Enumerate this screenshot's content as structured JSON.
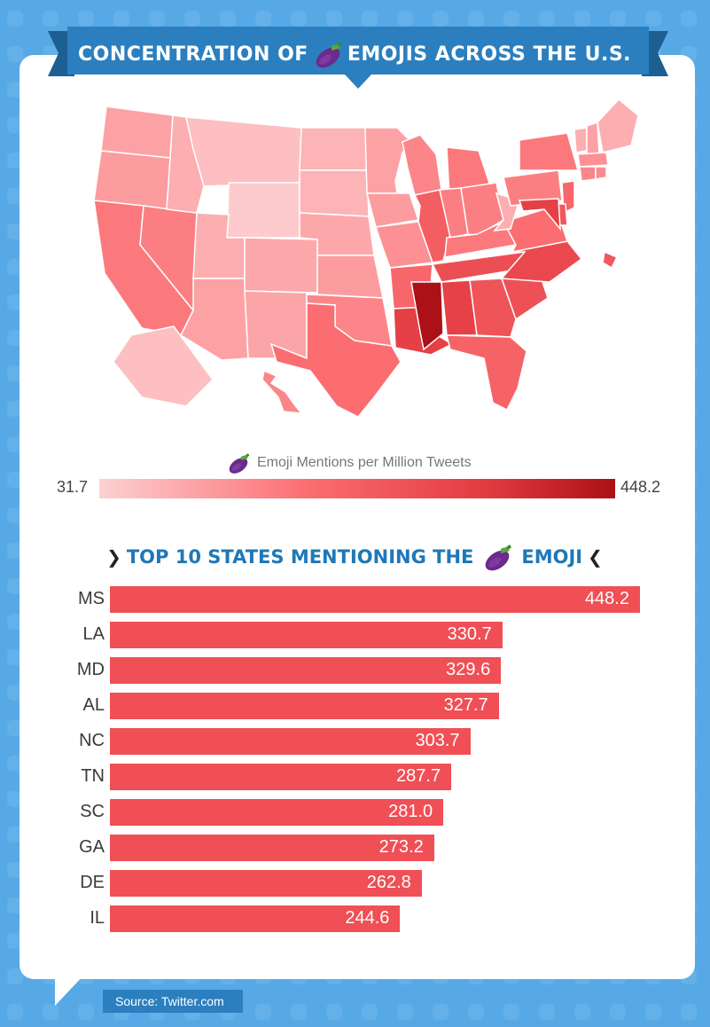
{
  "header": {
    "title_part1": "CONCENTRATION OF",
    "title_part2": "EMOJIS ACROSS THE U.S.",
    "title_icon": "eggplant-emoji-icon"
  },
  "colors": {
    "background": "#57a9e6",
    "ribbon": "#2b7fbf",
    "bar": "#ef4f55",
    "heading": "#1e78b8",
    "scale_low": "#fdd0d2",
    "scale_high": "#ab1116"
  },
  "legend": {
    "label": "Emoji Mentions per Million Tweets",
    "icon": "eggplant-emoji-icon",
    "min": "31.7",
    "max": "448.2"
  },
  "top10": {
    "heading_part1": "TOP 10 STATES MENTIONING THE",
    "heading_part2": "EMOJI",
    "icon": "eggplant-emoji-icon"
  },
  "chart_data": {
    "type": "bar",
    "orientation": "horizontal",
    "categories": [
      "MS",
      "LA",
      "MD",
      "AL",
      "NC",
      "TN",
      "SC",
      "GA",
      "DE",
      "IL"
    ],
    "values": [
      448.2,
      330.7,
      329.6,
      327.7,
      303.7,
      287.7,
      281.0,
      273.2,
      262.8,
      244.6
    ],
    "value_labels": [
      "448.2",
      "330.7",
      "329.6",
      "327.7",
      "303.7",
      "287.7",
      "281.0",
      "273.2",
      "262.8",
      "244.6"
    ],
    "title": "TOP 10 STATES MENTIONING THE EMOJI",
    "xlim": [
      0,
      448.2
    ]
  },
  "map_data": {
    "type": "choropleth",
    "value_range": [
      31.7,
      448.2
    ],
    "states": {
      "WA": 110,
      "OR": 120,
      "CA": 180,
      "NV": 170,
      "ID": 90,
      "MT": 60,
      "WY": 40,
      "UT": 90,
      "AZ": 110,
      "CO": 100,
      "NM": 105,
      "ND": 80,
      "SD": 80,
      "NE": 100,
      "KS": 120,
      "OK": 160,
      "TX": 200,
      "MN": 110,
      "IA": 120,
      "MO": 140,
      "AR": 220,
      "LA": 330.7,
      "WI": 160,
      "IL": 244.6,
      "MI": 180,
      "IN": 170,
      "OH": 170,
      "KY": 180,
      "TN": 287.7,
      "MS": 448.2,
      "AL": 327.7,
      "GA": 273.2,
      "FL": 230,
      "SC": 281.0,
      "NC": 303.7,
      "VA": 200,
      "WV": 90,
      "PA": 170,
      "NY": 180,
      "VT": 90,
      "NH": 110,
      "ME": 90,
      "MA": 140,
      "CT": 160,
      "RI": 150,
      "NJ": 220,
      "DE": 262.8,
      "MD": 329.6,
      "DC": 260,
      "AK": 60,
      "HI": 160
    }
  },
  "footer": {
    "source": "Source: Twitter.com"
  }
}
